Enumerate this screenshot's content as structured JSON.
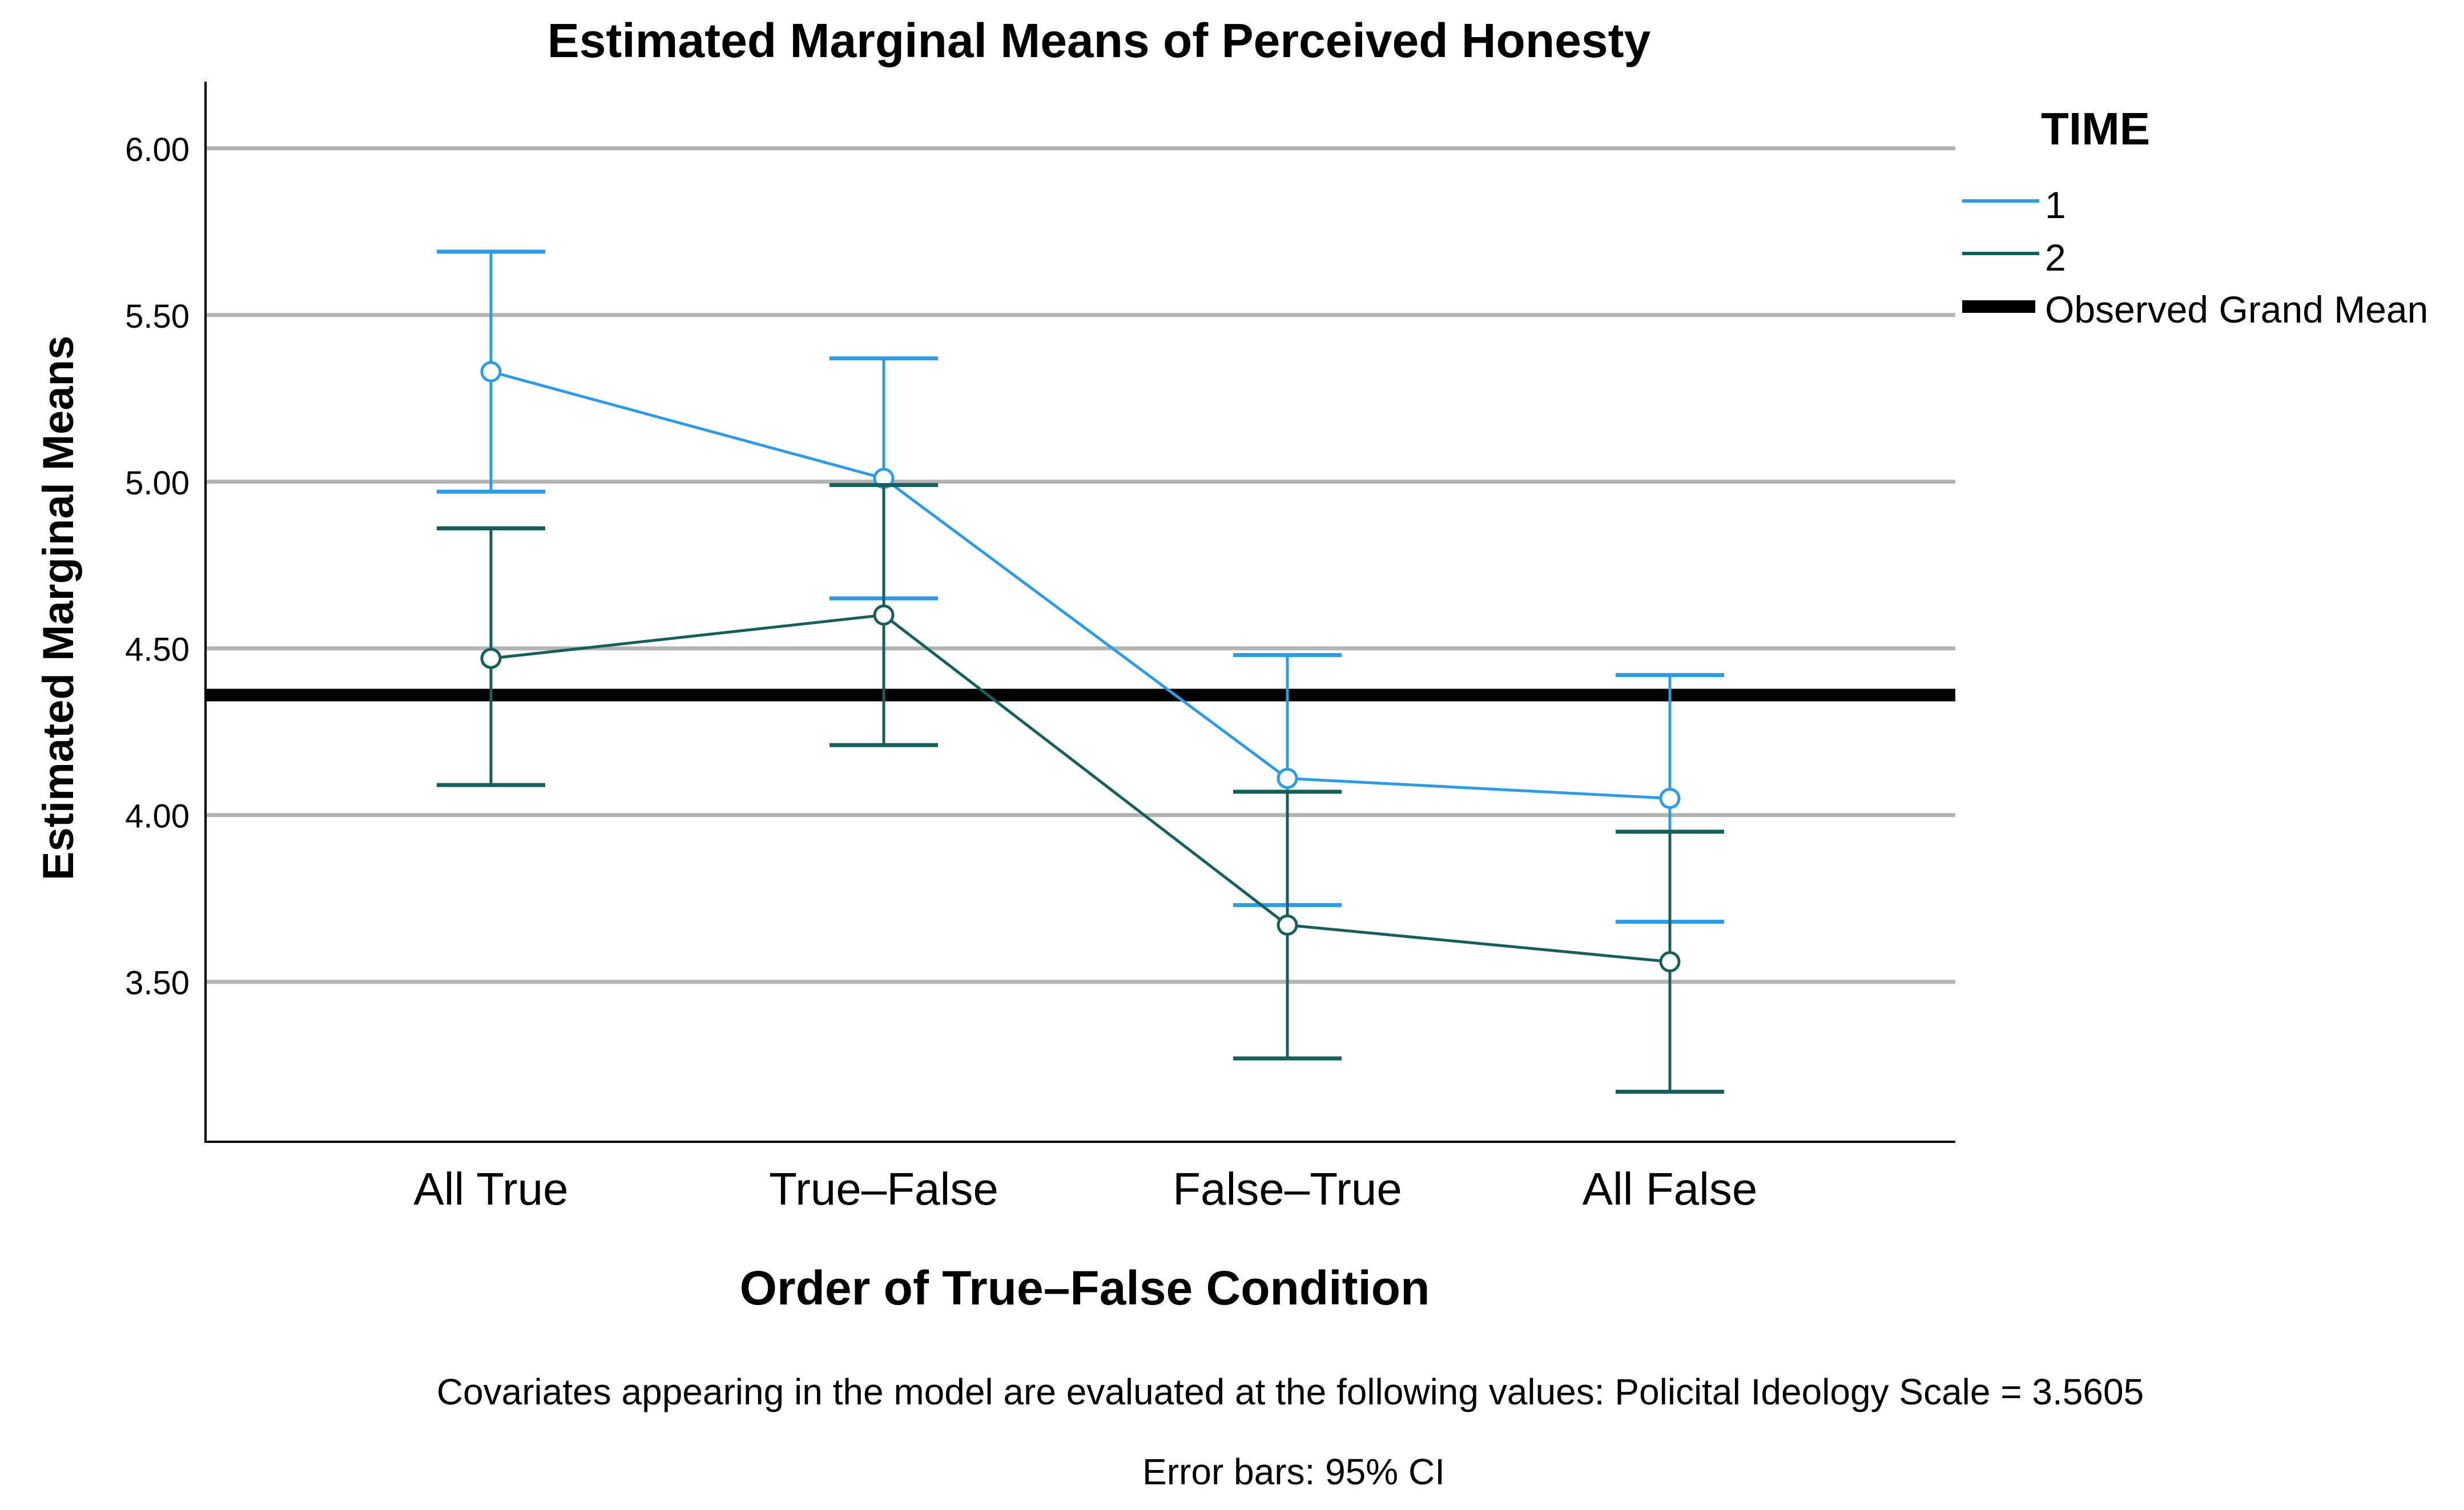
{
  "chart_data": {
    "type": "line",
    "title": "Estimated Marginal Means of Perceived Honesty",
    "xlabel": "Order of True–False Condition",
    "ylabel": "Estimated Marginal Means",
    "categories": [
      "All True",
      "True–False",
      "False–True",
      "All False"
    ],
    "yticks": [
      {
        "value": 3.5,
        "label": "3.50"
      },
      {
        "value": 4.0,
        "label": "4.00"
      },
      {
        "value": 4.5,
        "label": "4.50"
      },
      {
        "value": 5.0,
        "label": "5.00"
      },
      {
        "value": 5.5,
        "label": "5.50"
      },
      {
        "value": 6.0,
        "label": "6.00"
      }
    ],
    "ylim": [
      3.02,
      6.2
    ],
    "grid": true,
    "legend": {
      "title": "TIME",
      "position": "right"
    },
    "series": [
      {
        "name": "1",
        "color": "#2e9be6",
        "values": [
          5.33,
          5.01,
          4.11,
          4.05
        ],
        "ci_low": [
          4.97,
          4.65,
          3.73,
          3.68
        ],
        "ci_high": [
          5.69,
          5.37,
          4.48,
          4.42
        ]
      },
      {
        "name": "2",
        "color": "#17605a",
        "values": [
          4.47,
          4.6,
          3.67,
          3.56
        ],
        "ci_low": [
          4.09,
          4.21,
          3.27,
          3.17
        ],
        "ci_high": [
          4.86,
          4.99,
          4.07,
          3.95
        ]
      }
    ],
    "reference_line": {
      "name": "Observed Grand Mean",
      "value": 4.36,
      "color": "#000000"
    },
    "footnotes": [
      "Covariates appearing in the model are evaluated at the following values: Policital Ideology Scale = 3.5605",
      "Error bars: 95% CI"
    ]
  }
}
